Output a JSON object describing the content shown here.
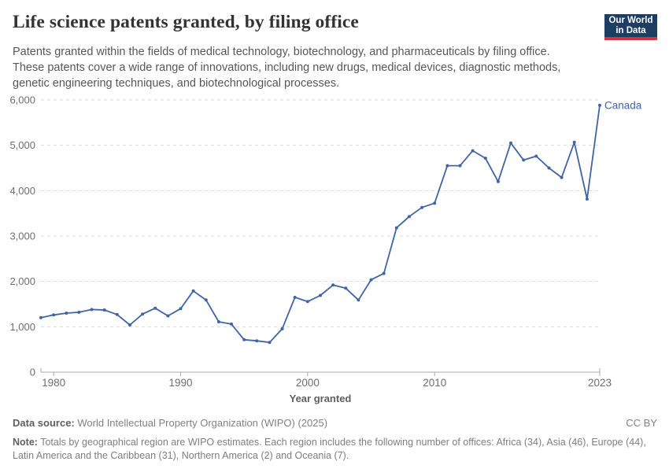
{
  "header": {
    "title": "Life science patents granted, by filing office",
    "subtitle": "Patents granted within the fields of medical technology, biotechnology, and pharmaceuticals by filing office. These patents cover a wide range of innovations, including new drugs, medical devices, diagnostic methods, genetic engineering techniques, and biotechnological processes.",
    "logo": {
      "line1": "Our World",
      "line2": "in Data",
      "bg_color": "#1d3d63",
      "accent_color": "#d43240"
    }
  },
  "chart_data": {
    "type": "line",
    "title": "Life science patents granted, by filing office",
    "xlabel": "Year granted",
    "ylabel": "",
    "ylim": [
      0,
      6000
    ],
    "grid": "horizontal-dashed",
    "legend": "end-of-line-label",
    "x": [
      1979,
      1980,
      1981,
      1982,
      1983,
      1984,
      1985,
      1986,
      1987,
      1988,
      1989,
      1990,
      1991,
      1992,
      1993,
      1994,
      1995,
      1996,
      1997,
      1998,
      1999,
      2000,
      2001,
      2002,
      2003,
      2004,
      2005,
      2006,
      2007,
      2008,
      2009,
      2010,
      2011,
      2012,
      2013,
      2014,
      2015,
      2016,
      2017,
      2018,
      2019,
      2020,
      2021,
      2022,
      2023
    ],
    "series": [
      {
        "name": "Canada",
        "color": "#4064a6",
        "values": [
          1200,
          1260,
          1300,
          1320,
          1380,
          1370,
          1270,
          1040,
          1280,
          1410,
          1240,
          1400,
          1790,
          1590,
          1110,
          1060,
          715,
          690,
          655,
          955,
          1650,
          1555,
          1690,
          1920,
          1850,
          1590,
          2035,
          2175,
          3180,
          3430,
          3630,
          3725,
          4550,
          4550,
          4880,
          4715,
          4200,
          5050,
          4675,
          4760,
          4500,
          4290,
          5065,
          3815,
          5880
        ]
      }
    ],
    "yticks": [
      {
        "v": 0,
        "label": "0"
      },
      {
        "v": 1000,
        "label": "1,000"
      },
      {
        "v": 2000,
        "label": "2,000"
      },
      {
        "v": 3000,
        "label": "3,000"
      },
      {
        "v": 4000,
        "label": "4,000"
      },
      {
        "v": 5000,
        "label": "5,000"
      },
      {
        "v": 6000,
        "label": "6,000"
      }
    ],
    "xticks": [
      {
        "v": 1980,
        "label": "1980"
      },
      {
        "v": 1990,
        "label": "1990"
      },
      {
        "v": 2000,
        "label": "2000"
      },
      {
        "v": 2010,
        "label": "2010"
      },
      {
        "v": 2023,
        "label": "2023"
      }
    ],
    "colors": {
      "gridline": "#dadada",
      "axis": "#a8a8a8",
      "tick": "#a8a8a8",
      "tick_label": "#6e6e6e",
      "axis_title": "#5e5e5e"
    }
  },
  "footer": {
    "source_label": "Data source:",
    "source_text": "World Intellectual Property Organization (WIPO) (2025)",
    "license": "CC BY",
    "note_label": "Note:",
    "note_text": "Totals by geographical region are WIPO estimates. Each region includes the following number of offices: Africa (34), Asia (46), Europe (44), Latin America and the Caribbean (31), Northern America (2) and Oceania (7)."
  }
}
